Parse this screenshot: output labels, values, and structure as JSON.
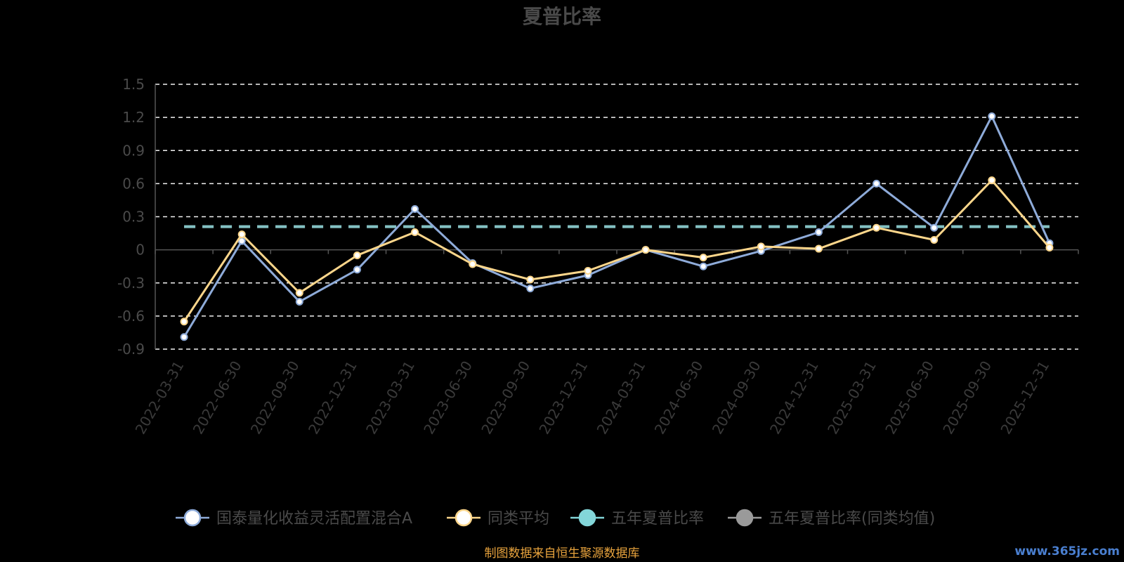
{
  "chart_data": {
    "type": "line",
    "title": "夏普比率",
    "categories": [
      "2022-03-31",
      "2022-06-30",
      "2022-09-30",
      "2022-12-31",
      "2023-03-31",
      "2023-06-30",
      "2023-09-30",
      "2023-12-31",
      "2024-03-31",
      "2024-06-30",
      "2024-09-30",
      "2024-12-31",
      "2025-03-31",
      "2025-06-30",
      "2025-09-30",
      "2025-12-31"
    ],
    "y_ticks": [
      "1.5",
      "1.2",
      "0.9",
      "0.6",
      "0.3",
      "0",
      "-0.3",
      "-0.6",
      "-0.9"
    ],
    "ylim": [
      -0.9,
      1.5
    ],
    "grid": true,
    "legend_position": "bottom",
    "series": [
      {
        "name": "国泰量化收益灵活配置混合A",
        "color": "#8eabd9",
        "marker_fill": "#ffffff",
        "values": [
          -0.79,
          0.08,
          -0.47,
          -0.18,
          0.37,
          -0.12,
          -0.35,
          -0.23,
          0.0,
          -0.15,
          -0.01,
          0.16,
          0.6,
          0.2,
          1.21,
          0.06
        ]
      },
      {
        "name": "同类平均",
        "color": "#fcd68b",
        "marker_fill": "#ffffff",
        "values": [
          -0.65,
          0.14,
          -0.39,
          -0.05,
          0.16,
          -0.13,
          -0.27,
          -0.19,
          0.0,
          -0.07,
          0.03,
          0.01,
          0.2,
          0.09,
          0.63,
          0.02
        ]
      },
      {
        "name": "五年夏普比率",
        "color": "#83d6d9",
        "marker_fill": "#83d6d9",
        "dashed": true,
        "values": [
          0.21,
          0.21,
          0.21,
          0.21,
          0.21,
          0.21,
          0.21,
          0.21,
          0.21,
          0.21,
          0.21,
          0.21,
          0.21,
          0.21,
          0.21,
          0.21
        ]
      },
      {
        "name": "五年夏普比率(同类均值)",
        "color": "#9a9a9a",
        "marker_fill": "#9a9a9a",
        "dashed": true,
        "values": [
          0.21,
          0.21,
          0.21,
          0.21,
          0.21,
          0.21,
          0.21,
          0.21,
          0.21,
          0.21,
          0.21,
          0.21,
          0.21,
          0.21,
          0.21,
          0.21
        ]
      }
    ],
    "source_note": "制图数据来自恒生聚源数据库",
    "source_note_color": "#e8a33d",
    "watermark": "www.365jz.com",
    "watermark_color": "#4a7fd0"
  }
}
